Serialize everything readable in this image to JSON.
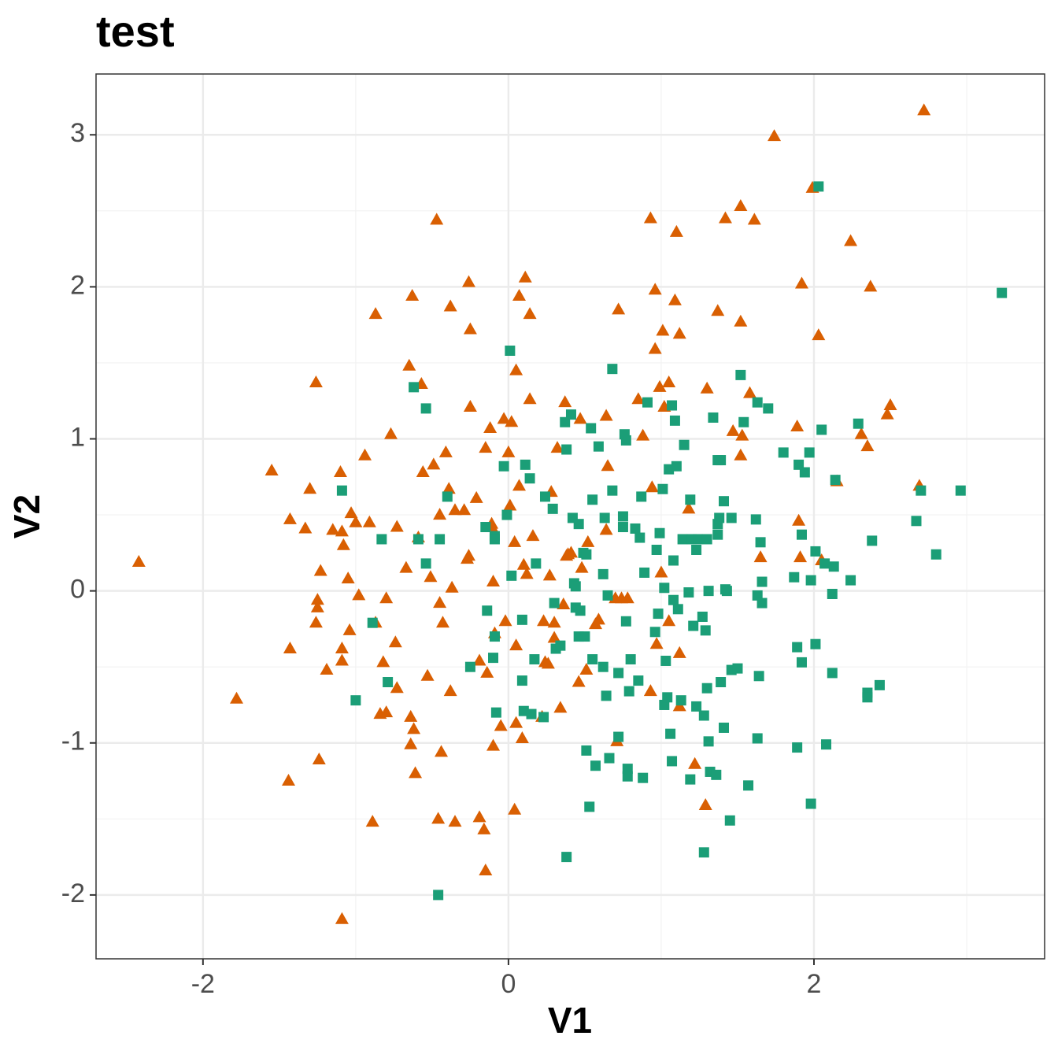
{
  "chart_data": {
    "type": "scatter",
    "title": "test",
    "x_label": "V1",
    "y_label": "V2",
    "xlim": [
      -2.7,
      3.51
    ],
    "ylim": [
      -2.42,
      3.4
    ],
    "xticks": [
      -2,
      0,
      2
    ],
    "yticks": [
      -2,
      -1,
      0,
      1,
      2,
      3
    ],
    "grid": true,
    "series": [
      {
        "color": "#d95f02",
        "marker": "triangle",
        "x": [
          -2.42,
          -1.78,
          -1.55,
          -1.43,
          -1.43,
          -1.44,
          -1.33,
          -1.3,
          -1.26,
          -1.25,
          -1.25,
          -1.26,
          -1.24,
          -1.23,
          -1.19,
          -1.15,
          -1.1,
          -1.09,
          -1.08,
          -1.09,
          -1.09,
          -1.09,
          -1.05,
          -1.04,
          -1.03,
          -1.0,
          -0.98,
          -0.94,
          -0.91,
          -0.89,
          -0.87,
          -0.87,
          -0.84,
          -0.82,
          -0.8,
          -0.8,
          -0.77,
          -0.74,
          -0.73,
          -0.73,
          -0.67,
          -0.65,
          -0.64,
          -0.63,
          -0.62,
          -0.64,
          -0.61,
          -0.59,
          -0.57,
          -0.56,
          -0.53,
          -0.51,
          -0.49,
          -0.47,
          -0.45,
          -0.46,
          -0.45,
          -0.44,
          -0.43,
          -0.41,
          -0.39,
          -0.38,
          -0.38,
          -0.37,
          -0.35,
          -0.35,
          -0.29,
          -0.27,
          -0.26,
          -0.26,
          -0.25,
          -0.25,
          -0.21,
          -0.19,
          -0.19,
          -0.16,
          -0.15,
          -0.15,
          -0.14,
          -0.12,
          -0.11,
          -0.1,
          -0.1,
          -0.11,
          -0.09,
          -0.05,
          -0.03,
          -0.02,
          0.0,
          0.01,
          0.02,
          0.04,
          0.05,
          0.04,
          0.05,
          0.05,
          0.07,
          0.07,
          0.09,
          0.11,
          0.1,
          0.12,
          0.14,
          0.14,
          0.16,
          0.22,
          0.23,
          0.24,
          0.26,
          0.27,
          0.28,
          0.3,
          0.3,
          0.32,
          0.34,
          0.36,
          0.37,
          0.38,
          0.39,
          0.41,
          0.46,
          0.47,
          0.48,
          0.51,
          0.52,
          0.57,
          0.59,
          0.64,
          0.64,
          0.65,
          0.7,
          0.71,
          0.72,
          0.74,
          0.78,
          0.85,
          0.88,
          0.93,
          0.93,
          0.94,
          0.96,
          0.96,
          0.97,
          0.99,
          1.0,
          1.01,
          1.02,
          1.05,
          1.05,
          1.09,
          1.1,
          1.12,
          1.12,
          1.12,
          1.18,
          1.22,
          1.29,
          1.3,
          1.37,
          1.42,
          1.47,
          1.52,
          1.52,
          1.53,
          1.52,
          1.58,
          1.61,
          1.65,
          1.74,
          1.89,
          1.9,
          1.91,
          1.92,
          1.99,
          2.03,
          2.05,
          2.15,
          2.24,
          2.31,
          2.35,
          2.37,
          2.48,
          2.5,
          2.69,
          2.72
        ],
        "y": [
          0.19,
          -0.71,
          0.79,
          0.47,
          -0.38,
          -1.25,
          0.41,
          0.67,
          1.37,
          -0.06,
          -0.11,
          -0.21,
          -1.11,
          0.13,
          -0.52,
          0.4,
          0.78,
          0.39,
          0.3,
          -0.38,
          -0.46,
          -2.16,
          0.08,
          -0.26,
          0.51,
          0.45,
          -0.03,
          0.89,
          0.45,
          -1.52,
          -0.21,
          1.82,
          -0.81,
          -0.47,
          -0.05,
          -0.8,
          1.03,
          -0.34,
          0.42,
          -0.64,
          0.15,
          1.48,
          -0.83,
          1.94,
          -0.91,
          -1.01,
          -1.2,
          0.35,
          1.36,
          0.78,
          -0.56,
          0.09,
          0.83,
          2.44,
          0.5,
          -1.5,
          -0.08,
          -1.06,
          -0.21,
          0.91,
          0.67,
          1.87,
          -0.66,
          0.02,
          0.53,
          -1.52,
          0.53,
          0.21,
          0.23,
          2.03,
          1.72,
          1.21,
          0.61,
          -1.49,
          -0.46,
          -1.57,
          0.94,
          -1.84,
          -0.54,
          1.07,
          0.42,
          -1.02,
          0.06,
          0.44,
          -0.28,
          -0.89,
          1.13,
          -0.2,
          0.91,
          0.56,
          1.11,
          0.32,
          1.45,
          -1.44,
          -0.87,
          -0.36,
          1.94,
          0.69,
          -0.97,
          2.06,
          0.17,
          0.11,
          1.82,
          1.26,
          0.36,
          -0.83,
          -0.2,
          -0.47,
          -0.48,
          0.1,
          0.65,
          -0.31,
          -0.21,
          0.94,
          -0.77,
          -0.09,
          1.24,
          0.23,
          0.24,
          0.25,
          -0.6,
          1.13,
          0.15,
          -0.52,
          0.32,
          -0.22,
          -0.19,
          1.15,
          0.4,
          0.82,
          -0.05,
          -0.99,
          1.85,
          -0.05,
          -0.05,
          1.26,
          1.02,
          -0.66,
          2.45,
          0.68,
          1.98,
          1.59,
          -0.35,
          1.34,
          0.12,
          1.71,
          1.21,
          1.37,
          -0.2,
          1.91,
          2.36,
          1.69,
          -0.41,
          -0.76,
          0.54,
          -1.14,
          -1.41,
          1.33,
          1.84,
          2.45,
          1.05,
          1.77,
          2.53,
          1.02,
          0.89,
          1.3,
          2.44,
          0.22,
          2.99,
          1.08,
          0.46,
          0.22,
          2.02,
          2.65,
          1.68,
          0.2,
          0.72,
          2.3,
          1.03,
          0.95,
          2.0,
          1.16,
          1.22,
          0.69,
          3.16
        ]
      },
      {
        "color": "#1b9e77",
        "marker": "square",
        "x": [
          -1.09,
          -1.0,
          -0.89,
          -0.83,
          -0.79,
          -0.62,
          -0.59,
          -0.54,
          -0.54,
          -0.46,
          -0.45,
          -0.4,
          -0.25,
          -0.15,
          -0.14,
          -0.1,
          -0.09,
          -0.09,
          -0.09,
          -0.08,
          -0.03,
          -0.01,
          0.01,
          0.02,
          0.09,
          0.09,
          0.1,
          0.11,
          0.14,
          0.15,
          0.17,
          0.18,
          0.23,
          0.24,
          0.29,
          0.3,
          0.31,
          0.34,
          0.37,
          0.38,
          0.38,
          0.41,
          0.42,
          0.43,
          0.44,
          0.44,
          0.46,
          0.46,
          0.47,
          0.49,
          0.5,
          0.51,
          0.51,
          0.53,
          0.54,
          0.55,
          0.55,
          0.57,
          0.59,
          0.62,
          0.62,
          0.63,
          0.64,
          0.65,
          0.66,
          0.68,
          0.68,
          0.72,
          0.72,
          0.75,
          0.75,
          0.76,
          0.77,
          0.77,
          0.78,
          0.78,
          0.79,
          0.8,
          0.83,
          0.85,
          0.86,
          0.87,
          0.88,
          0.89,
          0.91,
          0.96,
          0.97,
          0.98,
          0.99,
          1.01,
          1.02,
          1.02,
          1.03,
          1.04,
          1.05,
          1.06,
          1.07,
          1.07,
          1.08,
          1.08,
          1.09,
          1.1,
          1.11,
          1.13,
          1.14,
          1.15,
          1.18,
          1.19,
          1.19,
          1.2,
          1.21,
          1.23,
          1.23,
          1.24,
          1.27,
          1.28,
          1.28,
          1.29,
          1.3,
          1.3,
          1.31,
          1.31,
          1.32,
          1.34,
          1.36,
          1.37,
          1.37,
          1.37,
          1.38,
          1.39,
          1.39,
          1.41,
          1.41,
          1.42,
          1.43,
          1.45,
          1.46,
          1.46,
          1.5,
          1.52,
          1.54,
          1.57,
          1.62,
          1.63,
          1.63,
          1.63,
          1.64,
          1.65,
          1.66,
          1.66,
          1.7,
          1.8,
          1.87,
          1.89,
          1.89,
          1.9,
          1.92,
          1.92,
          1.94,
          1.97,
          1.98,
          1.98,
          2.01,
          2.01,
          2.03,
          2.05,
          2.07,
          2.08,
          2.12,
          2.12,
          2.13,
          2.14,
          2.24,
          2.29,
          2.35,
          2.35,
          2.43,
          2.38,
          2.67,
          2.7,
          2.8,
          2.96,
          3.23
        ],
        "y": [
          0.66,
          -0.72,
          -0.21,
          0.34,
          -0.6,
          1.34,
          0.34,
          1.2,
          0.18,
          -2.0,
          0.34,
          0.62,
          -0.5,
          0.42,
          -0.13,
          -0.44,
          0.36,
          0.34,
          -0.3,
          -0.8,
          0.82,
          0.5,
          1.58,
          0.1,
          -0.59,
          -0.19,
          -0.79,
          0.83,
          0.74,
          -0.81,
          -0.45,
          0.18,
          -0.83,
          0.62,
          0.54,
          -0.08,
          -0.38,
          -0.36,
          1.11,
          -1.75,
          0.93,
          1.16,
          0.48,
          0.05,
          -0.11,
          0.03,
          0.44,
          -0.3,
          -0.13,
          0.25,
          -0.3,
          0.24,
          -1.05,
          -1.42,
          1.07,
          0.6,
          -0.45,
          -1.15,
          0.95,
          0.11,
          -0.5,
          0.48,
          -0.69,
          -0.03,
          -1.1,
          1.46,
          0.66,
          -0.96,
          -0.54,
          0.49,
          0.42,
          1.03,
          0.99,
          -0.2,
          -1.17,
          -1.22,
          -0.66,
          -0.45,
          0.41,
          -0.59,
          0.35,
          0.62,
          -1.23,
          0.12,
          1.24,
          -0.27,
          0.27,
          -0.15,
          0.38,
          0.67,
          0.02,
          -0.75,
          -0.46,
          -0.7,
          0.8,
          -0.94,
          -1.12,
          1.22,
          -0.06,
          0.2,
          1.12,
          0.82,
          -0.12,
          -0.72,
          0.34,
          0.96,
          -0.01,
          -1.24,
          0.6,
          0.34,
          -0.23,
          0.27,
          -0.76,
          0.34,
          -0.17,
          -1.72,
          -0.82,
          -0.26,
          0.34,
          -0.64,
          0.0,
          -0.99,
          -1.19,
          1.14,
          -1.21,
          0.44,
          0.37,
          0.86,
          0.48,
          0.86,
          -0.6,
          0.59,
          -0.9,
          0.01,
          0.0,
          -1.51,
          0.48,
          -0.52,
          -0.51,
          1.42,
          1.11,
          -1.28,
          0.47,
          1.24,
          -0.97,
          -0.03,
          -0.56,
          0.32,
          0.06,
          -0.08,
          1.2,
          0.91,
          0.09,
          -0.37,
          -1.03,
          0.83,
          0.37,
          -0.47,
          0.78,
          0.91,
          0.07,
          -1.4,
          0.26,
          -0.35,
          2.66,
          1.06,
          0.18,
          -1.01,
          -0.54,
          -0.02,
          0.16,
          0.73,
          0.07,
          1.1,
          -0.67,
          -0.7,
          -0.62,
          0.33,
          0.46,
          0.66,
          0.24,
          0.66,
          1.96
        ]
      }
    ]
  }
}
